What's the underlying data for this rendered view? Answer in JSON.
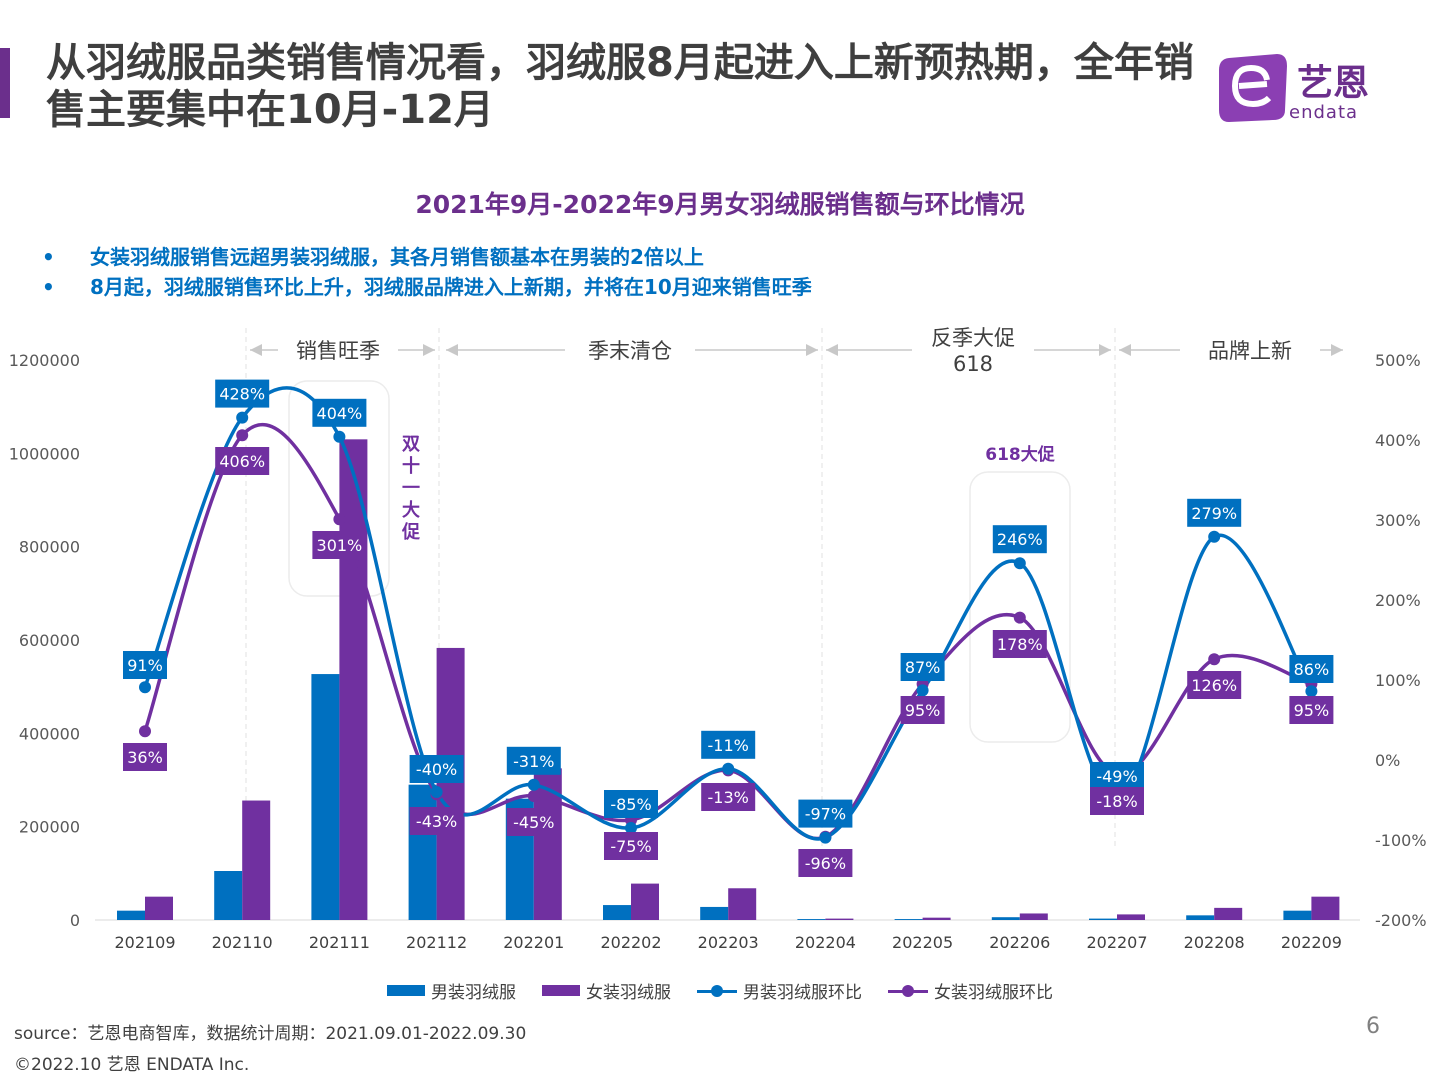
{
  "header": {
    "title": "从羽绒服品类销售情况看，羽绒服8月起进入上新预热期，全年销售主要集中在10月-12月",
    "logo_cn": "艺恩",
    "logo_en": "endata"
  },
  "bullets": [
    "女装羽绒服销售远超男装羽绒服，其各月销售额基本在男装的2倍以上",
    "8月起，羽绒服销售环比上升，羽绒服品牌进入上新期，并将在10月迎来销售旺季"
  ],
  "colors": {
    "men": "#0070c0",
    "women": "#7030a0",
    "title": "#3f3f3f",
    "accent": "#6b2f8c"
  },
  "chart_data": {
    "type": "bar+line",
    "title": "2021年9月-2022年9月男女羽绒服销售额与环比情况",
    "categories": [
      "202109",
      "202110",
      "202111",
      "202112",
      "202201",
      "202202",
      "202203",
      "202204",
      "202205",
      "202206",
      "202207",
      "202208",
      "202209"
    ],
    "y_left": {
      "ylim": [
        0,
        1200000
      ],
      "ticks": [
        "0",
        "200000",
        "400000",
        "600000",
        "800000",
        "1000000",
        "1200000"
      ]
    },
    "y_right": {
      "ylim": [
        -200,
        500
      ],
      "ticks": [
        "-200%",
        "-100%",
        "0%",
        "100%",
        "200%",
        "300%",
        "400%",
        "500%"
      ]
    },
    "series": [
      {
        "name": "男装羽绒服",
        "kind": "bar",
        "axis": "left",
        "values": [
          20000,
          105000,
          527000,
          290000,
          260000,
          32000,
          28000,
          2000,
          2000,
          6000,
          3000,
          10000,
          20000
        ]
      },
      {
        "name": "女装羽绒服",
        "kind": "bar",
        "axis": "left",
        "values": [
          50000,
          256000,
          1030000,
          583000,
          325000,
          78000,
          68000,
          3000,
          5000,
          14000,
          12000,
          26000,
          50000
        ]
      },
      {
        "name": "男装羽绒服环比",
        "kind": "line",
        "axis": "right",
        "values": [
          91,
          428,
          404,
          -40,
          -31,
          -85,
          -11,
          -97,
          87,
          246,
          -49,
          279,
          86
        ],
        "labels": [
          "91%",
          "428%",
          "404%",
          "-40%",
          "-31%",
          "-85%",
          "-11%",
          "-97%",
          "87%",
          "246%",
          "-49%",
          "279%",
          "86%"
        ]
      },
      {
        "name": "女装羽绒服环比",
        "kind": "line",
        "axis": "right",
        "values": [
          36,
          406,
          301,
          -43,
          -45,
          -75,
          -13,
          -96,
          95,
          178,
          -18,
          126,
          95
        ],
        "labels": [
          "36%",
          "406%",
          "301%",
          "-43%",
          "-45%",
          "-75%",
          "-13%",
          "-96%",
          "95%",
          "178%",
          "-18%",
          "126%",
          "95%"
        ]
      }
    ],
    "periods": [
      {
        "label": "销售旺季",
        "from": "202110",
        "to": "202112"
      },
      {
        "label": "季末清仓",
        "from": "202112",
        "to": "202204"
      },
      {
        "label": "反季大促\n618",
        "from": "202204",
        "to": "202207"
      },
      {
        "label": "品牌上新",
        "from": "202207",
        "to": "202209"
      }
    ],
    "annotations": [
      {
        "text": "双十一大促",
        "category": "202111",
        "orientation": "vertical"
      },
      {
        "text": "618大促",
        "category": "202206"
      }
    ],
    "legend": "bottom"
  },
  "footer": {
    "source": "source：艺恩电商智库，数据统计周期：2021.09.01-2022.09.30",
    "copyright": "©2022.10 艺恩 ENDATA Inc.",
    "page": "6"
  }
}
